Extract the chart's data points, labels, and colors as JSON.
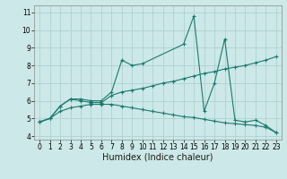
{
  "xlabel": "Humidex (Indice chaleur)",
  "ylabel": "",
  "bg_color": "#cce8e8",
  "line_color": "#1a7a6e",
  "grid_color": "#aacece",
  "xlim": [
    -0.5,
    23.5
  ],
  "ylim": [
    3.8,
    11.4
  ],
  "xticks": [
    0,
    1,
    2,
    3,
    4,
    5,
    6,
    7,
    8,
    9,
    10,
    11,
    12,
    13,
    14,
    15,
    16,
    17,
    18,
    19,
    20,
    21,
    22,
    23
  ],
  "yticks": [
    4,
    5,
    6,
    7,
    8,
    9,
    10,
    11
  ],
  "line1_x": [
    0,
    1,
    2,
    3,
    4,
    5,
    6,
    7,
    8,
    9,
    10,
    14,
    15,
    16,
    17,
    18,
    19,
    20,
    21,
    22,
    23
  ],
  "line1_y": [
    4.8,
    5.0,
    5.7,
    6.1,
    6.1,
    6.0,
    6.0,
    6.5,
    8.3,
    8.0,
    8.1,
    9.2,
    10.8,
    5.4,
    7.0,
    9.5,
    4.9,
    4.8,
    4.9,
    4.6,
    4.2
  ],
  "line2_x": [
    0,
    1,
    2,
    3,
    4,
    5,
    6,
    7,
    8,
    9,
    10,
    11,
    12,
    13,
    14,
    15,
    16,
    17,
    18,
    19,
    20,
    21,
    22,
    23
  ],
  "line2_y": [
    4.8,
    5.0,
    5.7,
    6.1,
    6.0,
    5.9,
    5.9,
    6.3,
    6.5,
    6.6,
    6.7,
    6.85,
    7.0,
    7.1,
    7.25,
    7.4,
    7.55,
    7.65,
    7.8,
    7.9,
    8.0,
    8.15,
    8.3,
    8.5
  ],
  "line3_x": [
    0,
    1,
    2,
    3,
    4,
    5,
    6,
    7,
    8,
    9,
    10,
    11,
    12,
    13,
    14,
    15,
    16,
    17,
    18,
    19,
    20,
    21,
    22,
    23
  ],
  "line3_y": [
    4.8,
    5.0,
    5.4,
    5.6,
    5.7,
    5.8,
    5.8,
    5.8,
    5.7,
    5.6,
    5.5,
    5.4,
    5.3,
    5.2,
    5.1,
    5.05,
    4.95,
    4.85,
    4.75,
    4.7,
    4.65,
    4.6,
    4.5,
    4.2
  ],
  "tick_fontsize": 5.5,
  "label_fontsize": 7
}
